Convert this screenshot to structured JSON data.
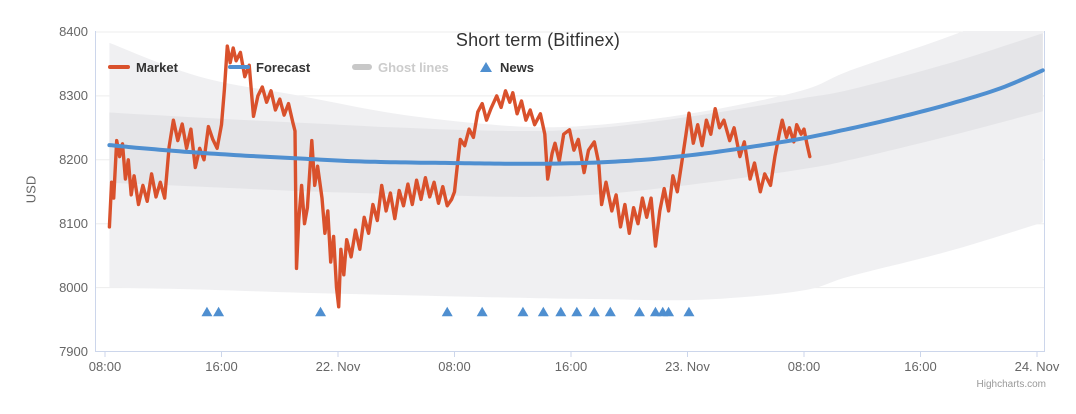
{
  "credit": "Highcharts.com",
  "legend": [
    {
      "label": "Market",
      "type": "line",
      "color": "#d9512c",
      "enabled": true
    },
    {
      "label": "Forecast",
      "type": "line",
      "color": "#4f8fd0",
      "enabled": true
    },
    {
      "label": "Ghost lines",
      "type": "thick-line",
      "color": "#c8c8c8",
      "enabled": false
    },
    {
      "label": "News",
      "type": "triangle",
      "color": "#4f8fd0",
      "enabled": true
    }
  ],
  "chart_data": {
    "type": "line",
    "title": "Short term (Bitfinex)",
    "xlabel": "",
    "ylabel": "USD",
    "ylim": [
      7900,
      8400
    ],
    "y_ticks": [
      7900,
      8000,
      8100,
      8200,
      8300,
      8400
    ],
    "x_tick_labels": [
      "08:00",
      "16:00",
      "22. Nov",
      "08:00",
      "16:00",
      "23. Nov",
      "08:00",
      "16:00",
      "24. Nov"
    ],
    "x_unit": "hours from first tick (ticks every 8 hours)",
    "x_tick_hours": [
      0,
      8,
      16,
      24,
      32,
      40,
      48,
      56,
      64
    ],
    "grid": true,
    "legend_position": "top-left",
    "series": [
      {
        "name": "Market",
        "color": "#d9512c",
        "width": 3.4,
        "points": [
          [
            0.3,
            8095
          ],
          [
            0.45,
            8165
          ],
          [
            0.6,
            8140
          ],
          [
            0.8,
            8230
          ],
          [
            1,
            8205
          ],
          [
            1.2,
            8225
          ],
          [
            1.4,
            8170
          ],
          [
            1.6,
            8200
          ],
          [
            1.8,
            8145
          ],
          [
            2,
            8175
          ],
          [
            2.3,
            8130
          ],
          [
            2.6,
            8160
          ],
          [
            2.9,
            8135
          ],
          [
            3.2,
            8178
          ],
          [
            3.5,
            8142
          ],
          [
            3.8,
            8165
          ],
          [
            4.1,
            8140
          ],
          [
            4.4,
            8220
          ],
          [
            4.7,
            8262
          ],
          [
            5,
            8230
          ],
          [
            5.3,
            8256
          ],
          [
            5.6,
            8218
          ],
          [
            5.9,
            8248
          ],
          [
            6.2,
            8188
          ],
          [
            6.5,
            8218
          ],
          [
            6.8,
            8200
          ],
          [
            7.1,
            8252
          ],
          [
            7.4,
            8232
          ],
          [
            7.7,
            8218
          ],
          [
            8,
            8255
          ],
          [
            8.2,
            8310
          ],
          [
            8.4,
            8378
          ],
          [
            8.6,
            8352
          ],
          [
            8.8,
            8375
          ],
          [
            9,
            8355
          ],
          [
            9.3,
            8368
          ],
          [
            9.6,
            8330
          ],
          [
            9.9,
            8348
          ],
          [
            10.2,
            8268
          ],
          [
            10.5,
            8300
          ],
          [
            10.8,
            8314
          ],
          [
            11.1,
            8290
          ],
          [
            11.4,
            8308
          ],
          [
            11.7,
            8278
          ],
          [
            12,
            8295
          ],
          [
            12.3,
            8270
          ],
          [
            12.6,
            8288
          ],
          [
            12.9,
            8258
          ],
          [
            13.05,
            8245
          ],
          [
            13.15,
            8030
          ],
          [
            13.3,
            8105
          ],
          [
            13.5,
            8160
          ],
          [
            13.7,
            8100
          ],
          [
            13.9,
            8125
          ],
          [
            14.2,
            8230
          ],
          [
            14.4,
            8160
          ],
          [
            14.6,
            8190
          ],
          [
            14.9,
            8140
          ],
          [
            15.1,
            8085
          ],
          [
            15.3,
            8120
          ],
          [
            15.5,
            8040
          ],
          [
            15.7,
            8080
          ],
          [
            15.9,
            8000
          ],
          [
            16.05,
            7970
          ],
          [
            16.2,
            8060
          ],
          [
            16.4,
            8020
          ],
          [
            16.6,
            8075
          ],
          [
            16.9,
            8048
          ],
          [
            17.2,
            8090
          ],
          [
            17.5,
            8060
          ],
          [
            17.8,
            8110
          ],
          [
            18.1,
            8085
          ],
          [
            18.4,
            8130
          ],
          [
            18.7,
            8105
          ],
          [
            19,
            8160
          ],
          [
            19.3,
            8120
          ],
          [
            19.6,
            8148
          ],
          [
            19.9,
            8108
          ],
          [
            20.2,
            8152
          ],
          [
            20.5,
            8128
          ],
          [
            20.8,
            8162
          ],
          [
            21.1,
            8130
          ],
          [
            21.4,
            8168
          ],
          [
            21.7,
            8138
          ],
          [
            22,
            8172
          ],
          [
            22.3,
            8142
          ],
          [
            22.6,
            8165
          ],
          [
            22.9,
            8132
          ],
          [
            23.2,
            8158
          ],
          [
            23.5,
            8128
          ],
          [
            23.8,
            8138
          ],
          [
            24,
            8150
          ],
          [
            24.2,
            8192
          ],
          [
            24.4,
            8232
          ],
          [
            24.7,
            8222
          ],
          [
            25,
            8248
          ],
          [
            25.3,
            8235
          ],
          [
            25.6,
            8275
          ],
          [
            25.9,
            8288
          ],
          [
            26.2,
            8262
          ],
          [
            26.5,
            8280
          ],
          [
            26.9,
            8300
          ],
          [
            27.2,
            8282
          ],
          [
            27.5,
            8308
          ],
          [
            27.8,
            8290
          ],
          [
            28,
            8305
          ],
          [
            28.3,
            8272
          ],
          [
            28.6,
            8292
          ],
          [
            28.9,
            8262
          ],
          [
            29.2,
            8278
          ],
          [
            29.5,
            8255
          ],
          [
            29.9,
            8272
          ],
          [
            30.2,
            8240
          ],
          [
            30.4,
            8170
          ],
          [
            30.7,
            8210
          ],
          [
            30.9,
            8226
          ],
          [
            31.2,
            8198
          ],
          [
            31.5,
            8240
          ],
          [
            31.9,
            8247
          ],
          [
            32.2,
            8215
          ],
          [
            32.5,
            8232
          ],
          [
            32.9,
            8180
          ],
          [
            33.2,
            8215
          ],
          [
            33.6,
            8228
          ],
          [
            33.9,
            8195
          ],
          [
            34.1,
            8130
          ],
          [
            34.4,
            8165
          ],
          [
            34.8,
            8120
          ],
          [
            35.1,
            8145
          ],
          [
            35.4,
            8095
          ],
          [
            35.7,
            8130
          ],
          [
            36,
            8085
          ],
          [
            36.3,
            8125
          ],
          [
            36.6,
            8100
          ],
          [
            36.9,
            8140
          ],
          [
            37.2,
            8110
          ],
          [
            37.5,
            8140
          ],
          [
            37.8,
            8065
          ],
          [
            38.1,
            8120
          ],
          [
            38.4,
            8155
          ],
          [
            38.7,
            8120
          ],
          [
            39,
            8175
          ],
          [
            39.3,
            8150
          ],
          [
            39.6,
            8195
          ],
          [
            39.9,
            8240
          ],
          [
            40.1,
            8273
          ],
          [
            40.4,
            8226
          ],
          [
            40.7,
            8255
          ],
          [
            41,
            8222
          ],
          [
            41.3,
            8262
          ],
          [
            41.6,
            8240
          ],
          [
            41.9,
            8280
          ],
          [
            42.2,
            8250
          ],
          [
            42.5,
            8262
          ],
          [
            42.9,
            8230
          ],
          [
            43.2,
            8250
          ],
          [
            43.6,
            8205
          ],
          [
            43.9,
            8228
          ],
          [
            44.3,
            8170
          ],
          [
            44.6,
            8195
          ],
          [
            45,
            8150
          ],
          [
            45.3,
            8178
          ],
          [
            45.7,
            8160
          ],
          [
            46,
            8205
          ],
          [
            46.3,
            8240
          ],
          [
            46.5,
            8262
          ],
          [
            46.8,
            8235
          ],
          [
            47,
            8250
          ],
          [
            47.3,
            8228
          ],
          [
            47.5,
            8255
          ],
          [
            47.8,
            8240
          ],
          [
            48,
            8248
          ],
          [
            48.2,
            8225
          ],
          [
            48.4,
            8205
          ]
        ]
      },
      {
        "name": "Forecast",
        "color": "#4f8fd0",
        "width": 4,
        "points": [
          [
            0.3,
            8223
          ],
          [
            3.1,
            8217
          ],
          [
            6.5,
            8211
          ],
          [
            10,
            8206
          ],
          [
            13.4,
            8202
          ],
          [
            16.8,
            8198
          ],
          [
            20.3,
            8196
          ],
          [
            23.7,
            8195
          ],
          [
            27.1,
            8194
          ],
          [
            30.6,
            8194
          ],
          [
            34,
            8196
          ],
          [
            37.5,
            8201
          ],
          [
            40.9,
            8209
          ],
          [
            44.3,
            8220
          ],
          [
            47.8,
            8233
          ],
          [
            51.2,
            8249
          ],
          [
            54.6,
            8267
          ],
          [
            58.1,
            8288
          ],
          [
            61.5,
            8312
          ],
          [
            64.4,
            8340
          ]
        ]
      },
      {
        "name": "Ghost lines (outer band)",
        "color": "#f0f0f2",
        "top": [
          [
            0.3,
            8383
          ],
          [
            6.5,
            8330
          ],
          [
            13.4,
            8300
          ],
          [
            20.6,
            8270
          ],
          [
            28.5,
            8252
          ],
          [
            34,
            8255
          ],
          [
            40.9,
            8275
          ],
          [
            47.8,
            8308
          ],
          [
            51.2,
            8340
          ],
          [
            58.1,
            8394
          ],
          [
            61.5,
            8428
          ],
          [
            64.4,
            8455
          ]
        ],
        "bottom": [
          [
            0.3,
            8000
          ],
          [
            6.5,
            7997
          ],
          [
            13.4,
            7992
          ],
          [
            20.6,
            7988
          ],
          [
            28.5,
            7984
          ],
          [
            34,
            7982
          ],
          [
            40.9,
            7981
          ],
          [
            47.8,
            7995
          ],
          [
            51.2,
            8018
          ],
          [
            58.1,
            8058
          ],
          [
            64.4,
            8102
          ]
        ]
      },
      {
        "name": "Ghost lines (inner band)",
        "color": "#e5e5e8",
        "top": [
          [
            0.3,
            8274
          ],
          [
            6.5,
            8266
          ],
          [
            13.4,
            8258
          ],
          [
            20.6,
            8250
          ],
          [
            28.5,
            8245
          ],
          [
            34,
            8250
          ],
          [
            40.9,
            8270
          ],
          [
            47.8,
            8296
          ],
          [
            51.2,
            8310
          ],
          [
            58.1,
            8352
          ],
          [
            64.4,
            8398
          ]
        ],
        "bottom": [
          [
            0.3,
            8164
          ],
          [
            6.5,
            8158
          ],
          [
            13.4,
            8151
          ],
          [
            20.6,
            8146
          ],
          [
            28.5,
            8142
          ],
          [
            34,
            8146
          ],
          [
            40.9,
            8163
          ],
          [
            47.8,
            8185
          ],
          [
            51.2,
            8200
          ],
          [
            58.1,
            8238
          ],
          [
            64.4,
            8276
          ]
        ]
      }
    ],
    "news_events": {
      "name": "News",
      "marker": "triangle-up",
      "color": "#4f8fd0",
      "y_value": 7963,
      "x_hours": [
        7.0,
        7.8,
        14.8,
        23.5,
        25.9,
        28.7,
        30.1,
        31.3,
        32.4,
        33.6,
        34.7,
        36.7,
        37.8,
        38.3,
        38.7,
        40.1
      ]
    },
    "colors": {
      "grid": "#ededed",
      "axis_line": "#ccd6eb",
      "title_text": "#333333",
      "axis_text": "#666666",
      "disabled_legend_text": "#cccccc"
    }
  }
}
